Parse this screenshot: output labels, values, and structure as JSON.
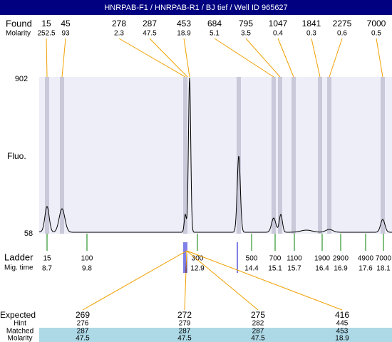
{
  "header": {
    "title": "HNRPAB-F1 / HNRPAB-R1 / BJ tief / Well ID 965627"
  },
  "found": {
    "label": "Found",
    "molarity_label": "Molarity",
    "sizes": [
      15,
      45,
      278,
      287,
      453,
      684,
      795,
      1047,
      1841,
      2275,
      7000
    ],
    "molarity": [
      252.5,
      93,
      2.3,
      47.5,
      18.9,
      5.1,
      3.5,
      0.4,
      0.3,
      0.6,
      0.5
    ]
  },
  "axis": {
    "label": "Fluo.",
    "max": 902,
    "min": 58
  },
  "ladder": {
    "label": "Ladder",
    "time_label": "Mig. time",
    "sizes": [
      15,
      100,
      300,
      500,
      700,
      1100,
      1900,
      2900,
      4900,
      7000
    ],
    "times": [
      8.7,
      9.8,
      12.9,
      14.4,
      15.1,
      15.7,
      16.4,
      16.9,
      17.6,
      18.1
    ]
  },
  "expected": {
    "labels": [
      "Expected",
      "Hint",
      "Matched",
      "Molarity"
    ],
    "columns": [
      {
        "expected": 269,
        "hint": 276,
        "matched": 287,
        "molarity": 47.5
      },
      {
        "expected": 272,
        "hint": 279,
        "matched": 287,
        "molarity": 47.5
      },
      {
        "expected": 275,
        "hint": 282,
        "matched": 287,
        "molarity": 47.5
      },
      {
        "expected": 416,
        "hint": 445,
        "matched": 453,
        "molarity": 18.9
      }
    ]
  }
}
